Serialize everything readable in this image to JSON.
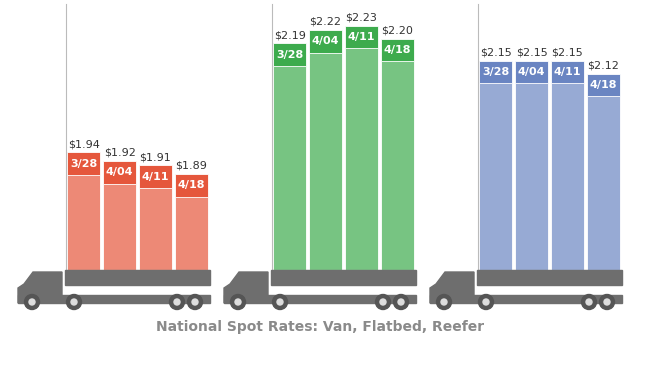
{
  "caption": "National Spot Rates: Van, Flatbed, Reefer",
  "chart_data": [
    {
      "type": "bar",
      "categories": [
        "3/28",
        "4/04",
        "4/11",
        "4/18"
      ],
      "values": [
        1.94,
        1.92,
        1.91,
        1.89
      ],
      "value_labels": [
        "$1.94",
        "$1.92",
        "$1.91",
        "$1.89"
      ],
      "color": "#e5573c",
      "ylim": [
        1.67,
        2.28
      ],
      "yticks": [],
      "tick_labels": false,
      "data_labels": true
    },
    {
      "type": "bar",
      "categories": [
        "3/28",
        "4/04",
        "4/11",
        "4/18"
      ],
      "values": [
        2.19,
        2.22,
        2.23,
        2.2
      ],
      "value_labels": [
        "$2.19",
        "$2.22",
        "$2.23",
        "$2.20"
      ],
      "color": "#3dab4d",
      "ylim": [
        1.67,
        2.28
      ],
      "yticks": [],
      "tick_labels": false,
      "data_labels": true
    },
    {
      "type": "bar",
      "categories": [
        "3/28",
        "4/04",
        "4/11",
        "4/18"
      ],
      "values": [
        2.15,
        2.15,
        2.15,
        2.12
      ],
      "value_labels": [
        "$2.15",
        "$2.15",
        "$2.15",
        "$2.12"
      ],
      "color": "#6a85c2",
      "ylim": [
        1.67,
        2.28
      ],
      "yticks": [],
      "tick_labels": false,
      "data_labels": true
    }
  ]
}
